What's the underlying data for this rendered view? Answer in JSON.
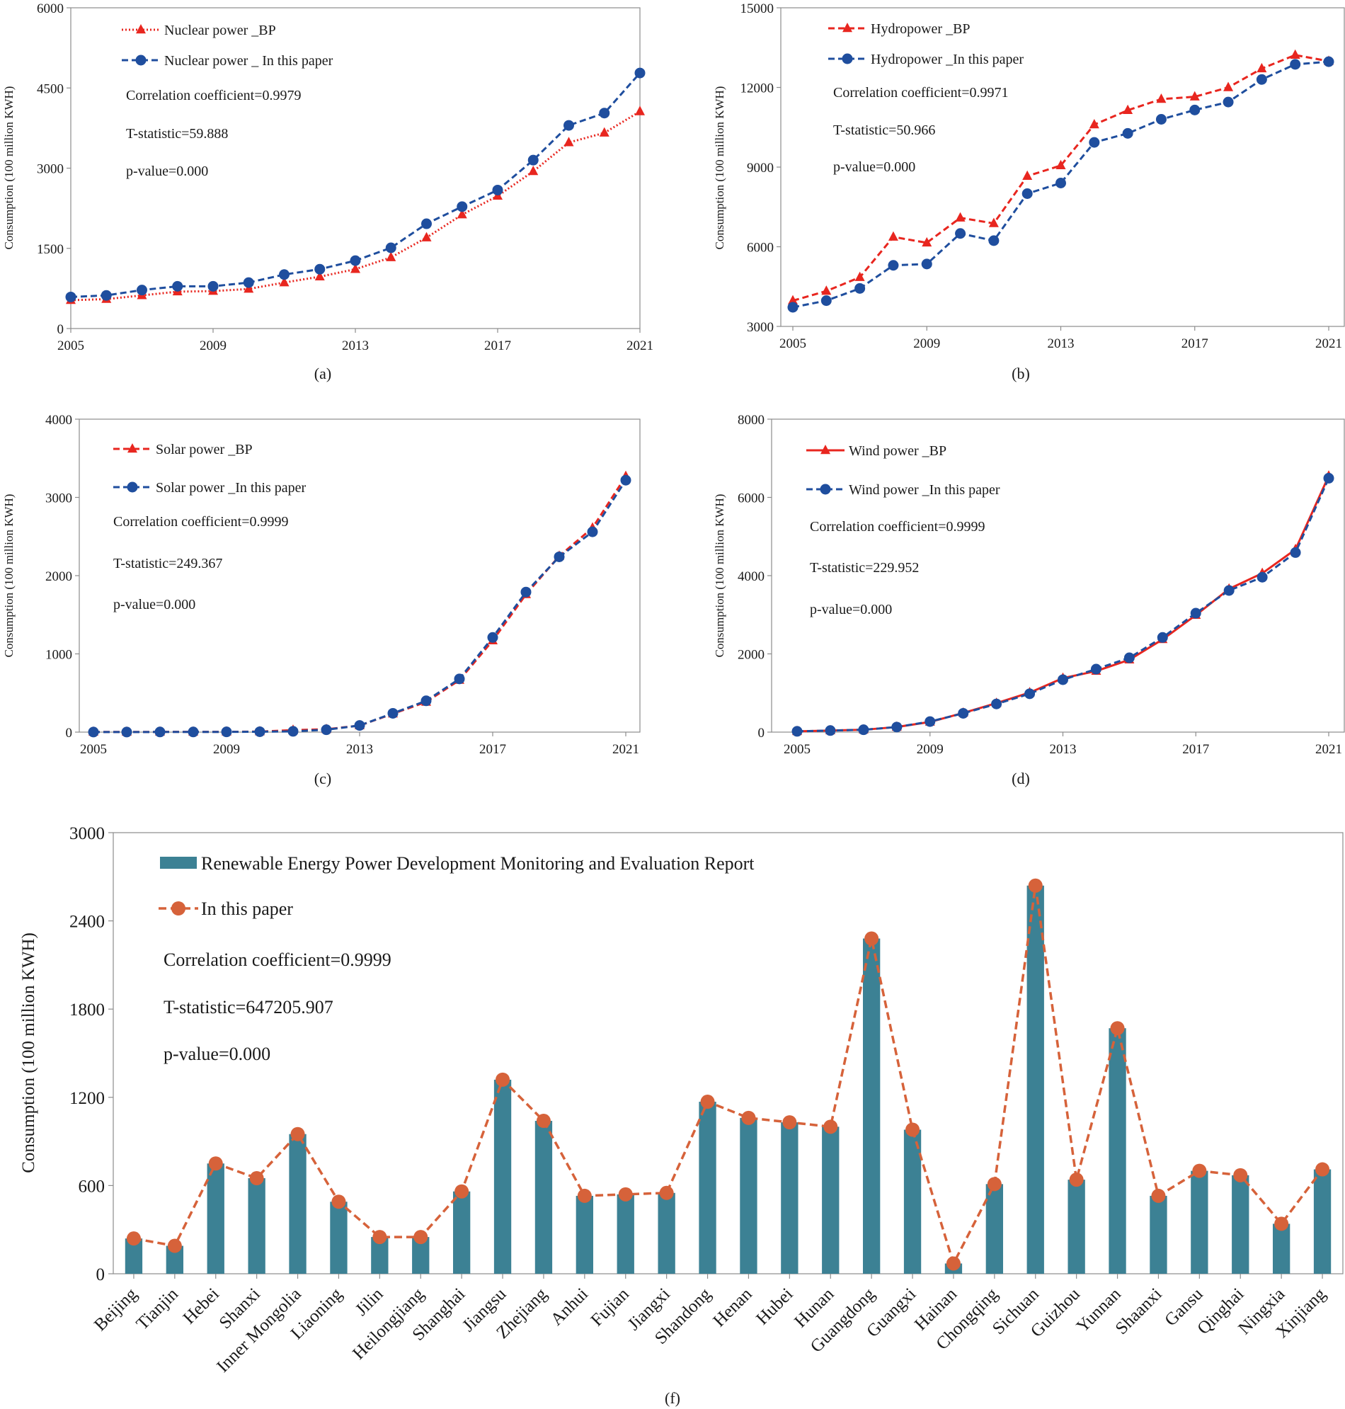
{
  "colors": {
    "red": "#E8261F",
    "blue": "#1F4E9E",
    "teal": "#3C8194",
    "orange": "#D6623A"
  },
  "chart_data": [
    {
      "id": "a",
      "caption": "(a)",
      "type": "line",
      "ylabel": "Consumption (100 million KWH)",
      "xlim": [
        2005,
        2021
      ],
      "ylim": [
        0,
        6000
      ],
      "xticks": [
        "2005",
        "2009",
        "2013",
        "2017",
        "2021"
      ],
      "yticks": [
        "0",
        "1500",
        "3000",
        "4500",
        "6000"
      ],
      "x": [
        2005,
        2006,
        2007,
        2008,
        2009,
        2010,
        2011,
        2012,
        2013,
        2014,
        2015,
        2016,
        2017,
        2018,
        2019,
        2020,
        2021
      ],
      "series": [
        {
          "name": "Nuclear power _BP",
          "marker": "triangle",
          "color": "#E8261F",
          "dash": "dot",
          "values": [
            530,
            550,
            620,
            690,
            700,
            740,
            860,
            970,
            1110,
            1330,
            1700,
            2130,
            2480,
            2940,
            3480,
            3660,
            4060
          ]
        },
        {
          "name": "Nuclear power _ In this paper",
          "marker": "circle",
          "color": "#1F4E9E",
          "dash": "dash",
          "values": [
            590,
            620,
            720,
            790,
            790,
            860,
            1010,
            1110,
            1270,
            1510,
            1960,
            2280,
            2590,
            3150,
            3800,
            4030,
            4780
          ]
        }
      ],
      "stats": [
        "Correlation coefficient=0.9979",
        "T-statistic=59.888",
        "p-value=0.000"
      ]
    },
    {
      "id": "b",
      "caption": "(b)",
      "type": "line",
      "ylabel": "Consumption (100 million KWH)",
      "xlim": [
        2005,
        2021
      ],
      "ylim": [
        3000,
        15000
      ],
      "xticks": [
        "2005",
        "2009",
        "2013",
        "2017",
        "2021"
      ],
      "yticks": [
        "3000",
        "6000",
        "9000",
        "12000",
        "15000"
      ],
      "x": [
        2005,
        2006,
        2007,
        2008,
        2009,
        2010,
        2011,
        2012,
        2013,
        2014,
        2015,
        2016,
        2017,
        2018,
        2019,
        2020,
        2021
      ],
      "series": [
        {
          "name": "Hydropower _BP",
          "marker": "triangle",
          "color": "#E8261F",
          "dash": "dash",
          "values": [
            3970,
            4330,
            4850,
            6370,
            6150,
            7090,
            6880,
            8660,
            9060,
            10600,
            11140,
            11560,
            11650,
            12000,
            12710,
            13220,
            12990
          ]
        },
        {
          "name": "Hydropower _In this paper",
          "marker": "circle",
          "color": "#1F4E9E",
          "dash": "dash",
          "values": [
            3720,
            3970,
            4430,
            5300,
            5350,
            6500,
            6230,
            8000,
            8400,
            9930,
            10270,
            10800,
            11150,
            11450,
            12300,
            12870,
            12970
          ]
        }
      ],
      "stats": [
        "Correlation coefficient=0.9971",
        "T-statistic=50.966",
        "p-value=0.000"
      ]
    },
    {
      "id": "c",
      "caption": "(c)",
      "type": "line",
      "ylabel": "Consumption (100 million KWH)",
      "xlim": [
        2005,
        2021
      ],
      "ylim": [
        0,
        4000
      ],
      "xticks": [
        "2005",
        "2009",
        "2013",
        "2017",
        "2021"
      ],
      "yticks": [
        "0",
        "1000",
        "2000",
        "3000",
        "4000"
      ],
      "x": [
        2005,
        2006,
        2007,
        2008,
        2009,
        2010,
        2011,
        2012,
        2013,
        2014,
        2015,
        2016,
        2017,
        2018,
        2019,
        2020,
        2021
      ],
      "series": [
        {
          "name": "Solar power _BP",
          "marker": "triangle",
          "color": "#E8261F",
          "dash": "dash",
          "values": [
            2,
            2,
            3,
            3,
            4,
            7,
            26,
            36,
            84,
            235,
            385,
            665,
            1170,
            1760,
            2250,
            2610,
            3270
          ]
        },
        {
          "name": "Solar power _In this paper",
          "marker": "circle",
          "color": "#1F4E9E",
          "dash": "dash",
          "values": [
            1,
            1,
            2,
            2,
            3,
            5,
            10,
            30,
            85,
            240,
            400,
            680,
            1210,
            1790,
            2240,
            2560,
            3220
          ]
        }
      ],
      "stats": [
        "Correlation coefficient=0.9999",
        "T-statistic=249.367",
        "p-value=0.000"
      ]
    },
    {
      "id": "d",
      "caption": "(d)",
      "type": "line",
      "ylabel": "Consumption (100 million KWH)",
      "xlim": [
        2005,
        2021
      ],
      "ylim": [
        0,
        8000
      ],
      "xticks": [
        "2005",
        "2009",
        "2013",
        "2017",
        "2021"
      ],
      "yticks": [
        "0",
        "2000",
        "4000",
        "6000",
        "8000"
      ],
      "x": [
        2005,
        2006,
        2007,
        2008,
        2009,
        2010,
        2011,
        2012,
        2013,
        2014,
        2015,
        2016,
        2017,
        2018,
        2019,
        2020,
        2021
      ],
      "series": [
        {
          "name": "Wind power _BP",
          "marker": "triangle",
          "color": "#E8261F",
          "dash": "solid",
          "values": [
            20,
            40,
            60,
            130,
            260,
            490,
            740,
            1010,
            1380,
            1560,
            1850,
            2370,
            2990,
            3660,
            4060,
            4670,
            6550
          ]
        },
        {
          "name": "Wind power _In this paper",
          "marker": "circle",
          "color": "#1F4E9E",
          "dash": "dash",
          "values": [
            20,
            40,
            60,
            130,
            270,
            480,
            720,
            980,
            1340,
            1610,
            1900,
            2420,
            3040,
            3620,
            3960,
            4590,
            6490
          ]
        }
      ],
      "stats": [
        "Correlation coefficient=0.9999",
        "T-statistic=229.952",
        "p-value=0.000"
      ]
    },
    {
      "id": "f",
      "caption": "(f)",
      "type": "bar+line",
      "ylabel": "Consumption (100 million KWH)",
      "ylim": [
        0,
        3000
      ],
      "yticks": [
        "0",
        "600",
        "1200",
        "1800",
        "2400",
        "3000"
      ],
      "categories": [
        "Beijing",
        "Tianjin",
        "Hebei",
        "Shanxi",
        "Inner Mongolia",
        "Liaoning",
        "Jilin",
        "Heilongjiang",
        "Shanghai",
        "Jiangsu",
        "Zhejiang",
        "Anhui",
        "Fujian",
        "Jiangxi",
        "Shandong",
        "Henan",
        "Hubei",
        "Hunan",
        "Guangdong",
        "Guangxi",
        "Hainan",
        "Chongqing",
        "Sichuan",
        "Guizhou",
        "Yunnan",
        "Shaanxi",
        "Gansu",
        "Qinghai",
        "Ningxia",
        "Xinjiang"
      ],
      "series": [
        {
          "name": "Renewable Energy Power Development Monitoring and Evaluation Report",
          "kind": "bar",
          "color": "#3C8194",
          "values": [
            240,
            190,
            750,
            650,
            950,
            490,
            250,
            250,
            560,
            1320,
            1040,
            530,
            540,
            550,
            1170,
            1060,
            1030,
            1000,
            2280,
            980,
            70,
            610,
            2640,
            640,
            1670,
            530,
            700,
            670,
            340,
            710
          ]
        },
        {
          "name": "In this paper",
          "kind": "line",
          "marker": "circle",
          "color": "#D6623A",
          "dash": "dash",
          "values": [
            240,
            190,
            750,
            650,
            950,
            490,
            250,
            250,
            560,
            1320,
            1040,
            530,
            540,
            550,
            1170,
            1060,
            1030,
            1000,
            2280,
            980,
            70,
            610,
            2640,
            640,
            1670,
            530,
            700,
            670,
            340,
            710
          ]
        }
      ],
      "stats": [
        "Correlation coefficient=0.9999",
        "T-statistic=647205.907",
        "p-value=0.000"
      ]
    }
  ]
}
